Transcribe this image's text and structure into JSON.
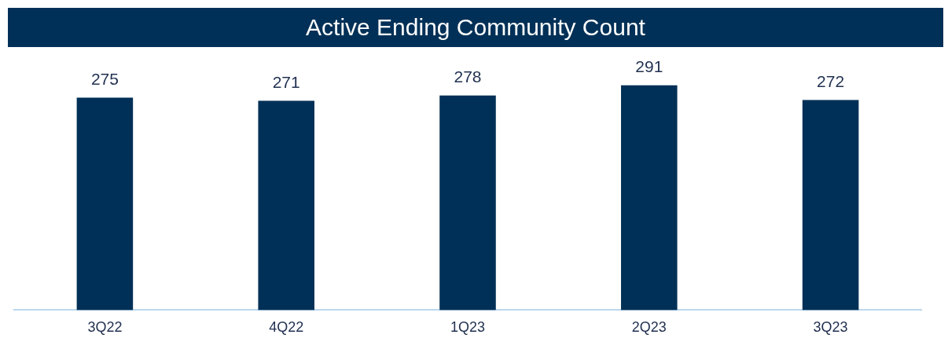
{
  "chart_data": {
    "type": "bar",
    "title": "Active Ending Community Count",
    "categories": [
      "3Q22",
      "4Q22",
      "1Q23",
      "2Q23",
      "3Q23"
    ],
    "values": [
      275,
      271,
      278,
      291,
      272
    ],
    "color": "#003057",
    "tick_labels": "x",
    "data_labels": true,
    "grid": false,
    "legend": false
  }
}
